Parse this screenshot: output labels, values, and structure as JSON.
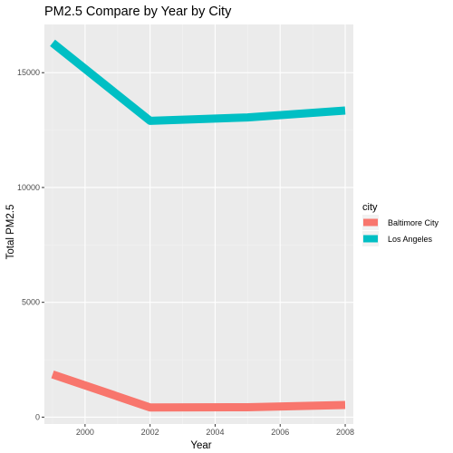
{
  "chart_data": {
    "type": "line",
    "title": "PM2.5 Compare by Year by City",
    "xlabel": "Year",
    "ylabel": "Total PM2.5",
    "xlim": [
      1998.75,
      2008.25
    ],
    "ylim": [
      -300,
      17100
    ],
    "x_ticks": [
      2000,
      2002,
      2004,
      2006,
      2008
    ],
    "y_ticks": [
      0,
      5000,
      10000,
      15000
    ],
    "x_tick_labels": [
      "2000",
      "2002",
      "2004",
      "2006",
      "2008"
    ],
    "y_tick_labels": [
      "0",
      "5000",
      "10000",
      "15000"
    ],
    "grid": true,
    "legend": {
      "title": "city",
      "placement": "right"
    },
    "x": [
      1999,
      2002,
      2005,
      2008
    ],
    "series": [
      {
        "name": "Baltimore City",
        "color": "#F8766D",
        "values": [
          1862,
          422,
          430,
          528
        ]
      },
      {
        "name": "Los Angeles",
        "color": "#00BFC4",
        "values": [
          16300,
          12900,
          13050,
          13350
        ]
      }
    ]
  },
  "colors": {
    "panel_background": "#EBEBEB",
    "grid_major": "#FFFFFF",
    "grid_minor": "#F2F2F2"
  }
}
